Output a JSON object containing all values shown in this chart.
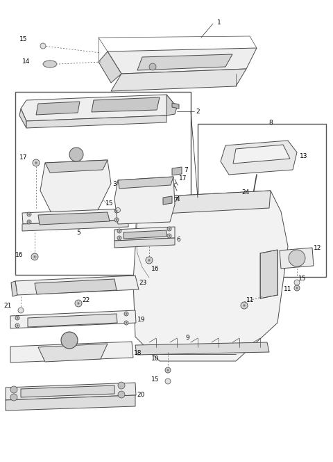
{
  "bg_color": "#ffffff",
  "lc": "#4a4a4a",
  "lw_main": 0.7,
  "lw_thin": 0.4,
  "label_fs": 6.5,
  "fig_w": 4.8,
  "fig_h": 6.64,
  "dpi": 100
}
